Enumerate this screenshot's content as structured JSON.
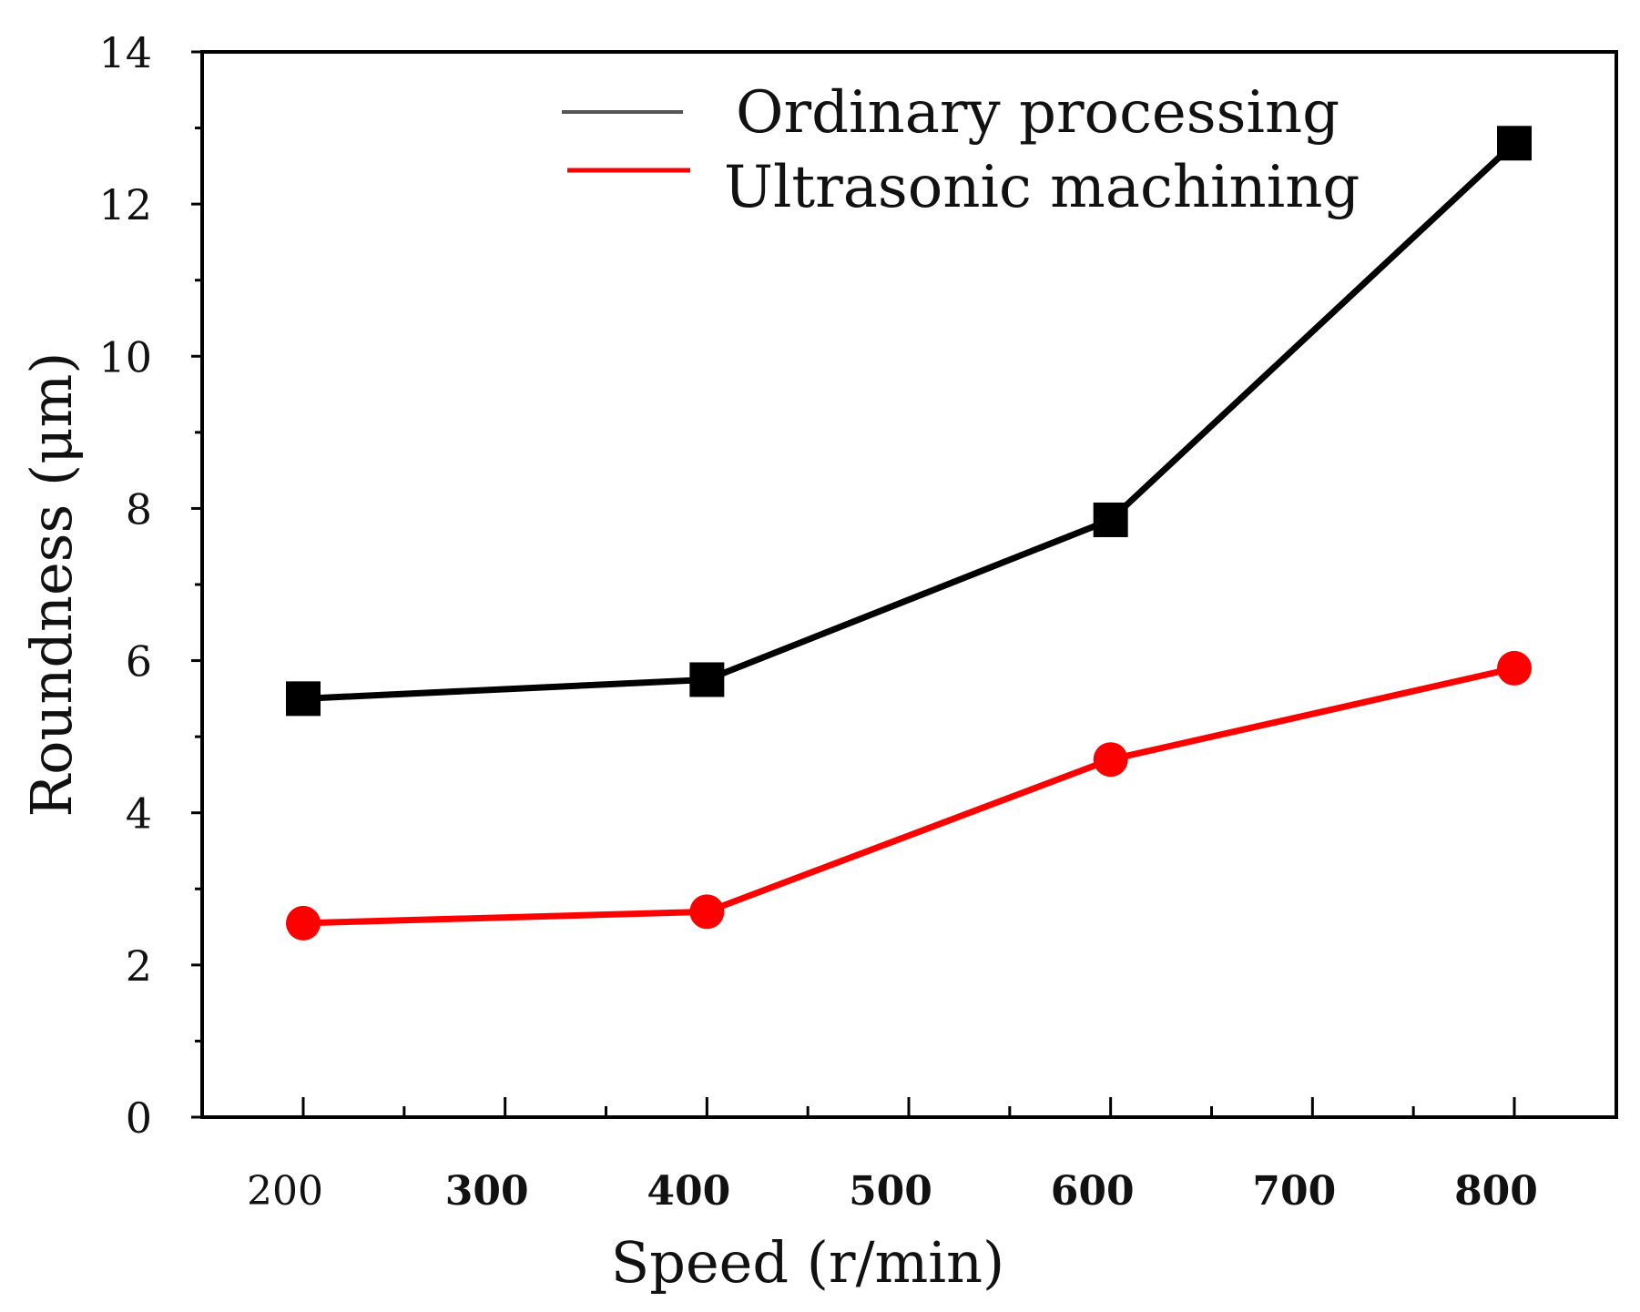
{
  "chart_data": {
    "type": "line",
    "title": "",
    "xlabel": "Speed (r/min)",
    "ylabel": "Roundness (μm)",
    "xlim": [
      150,
      850
    ],
    "ylim": [
      0,
      14
    ],
    "x_ticks": [
      200,
      300,
      400,
      500,
      600,
      700,
      800
    ],
    "x_tick_labels": [
      "200",
      "300",
      "400",
      "500",
      "600",
      "700",
      "800"
    ],
    "y_ticks": [
      0,
      2,
      4,
      6,
      8,
      10,
      12,
      14
    ],
    "y_tick_labels": [
      "0",
      "2",
      "4",
      "6",
      "8",
      "10",
      "12",
      "14"
    ],
    "grid": false,
    "legend_position": "top-right",
    "series": [
      {
        "name": "Ordinary processing",
        "color": "#000000",
        "marker": "square",
        "x": [
          200,
          400,
          600,
          800
        ],
        "values": [
          5.5,
          5.75,
          7.85,
          12.8
        ]
      },
      {
        "name": "Ultrasonic machining",
        "color": "#ff0000",
        "marker": "circle",
        "x": [
          200,
          400,
          600,
          800
        ],
        "values": [
          2.55,
          2.7,
          4.7,
          5.9
        ]
      }
    ]
  }
}
